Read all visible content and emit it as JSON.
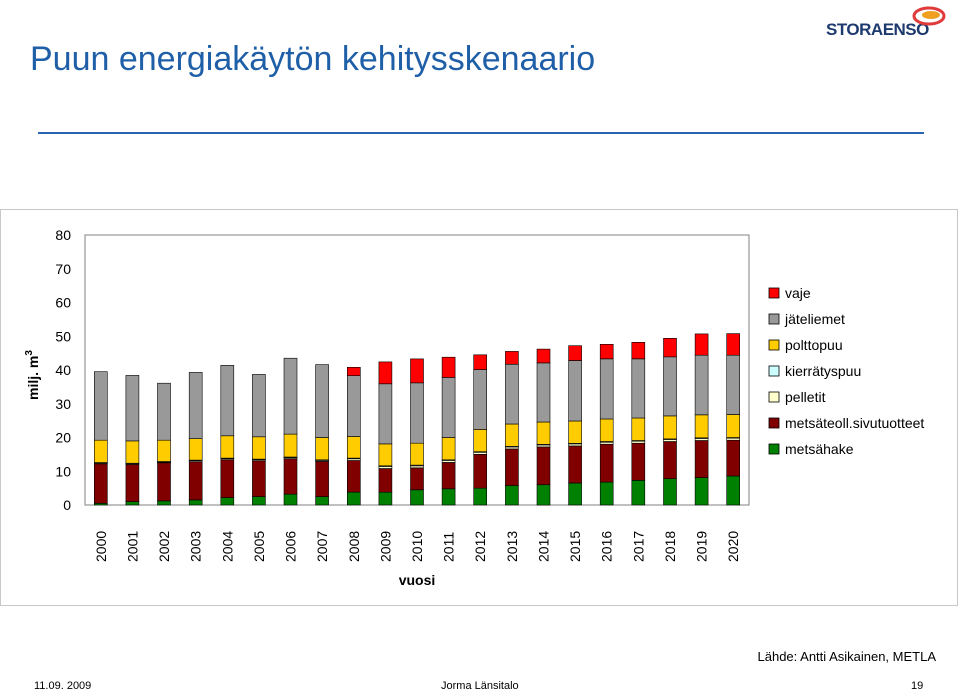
{
  "slide": {
    "title": "Puun energiakäytön kehitysskenaario",
    "source": "Lähde: Antti Asikainen, METLA",
    "footer_date": "11.09. 2009",
    "footer_author": "Jorma Länsitalo",
    "footer_page": "19",
    "logo": {
      "name": "storaenso-logo",
      "text": "STORAENSO"
    }
  },
  "chart_data": {
    "type": "bar",
    "stacked": true,
    "title": "",
    "xlabel": "vuosi",
    "ylabel": "milj. m",
    "ylabel_superscript": "3",
    "ylim": [
      0,
      80
    ],
    "yticks": [
      0,
      10,
      20,
      30,
      40,
      50,
      60,
      70,
      80
    ],
    "grid": false,
    "legend_position": "right",
    "categories": [
      "2000",
      "2001",
      "2002",
      "2003",
      "2004",
      "2005",
      "2006",
      "2007",
      "2008",
      "2009",
      "2010",
      "2011",
      "2012",
      "2013",
      "2014",
      "2015",
      "2016",
      "2017",
      "2018",
      "2019",
      "2020"
    ],
    "series": [
      {
        "name": "metsähake",
        "color": "#008000",
        "values": [
          0.5,
          1,
          1.2,
          1.5,
          2.2,
          2.5,
          3.2,
          2.5,
          3.8,
          3.8,
          4.5,
          4.8,
          5,
          5.8,
          6,
          6.5,
          6.8,
          7.3,
          7.8,
          8.1,
          8.6
        ]
      },
      {
        "name": "metsäteoll.sivutuotteet",
        "color": "#800000",
        "values": [
          11.7,
          11,
          11.3,
          11.3,
          11.2,
          10.6,
          10.5,
          10.4,
          9.4,
          7,
          6.5,
          7.8,
          10,
          10.8,
          11.2,
          11,
          11.2,
          11,
          11,
          11,
          10.6
        ]
      },
      {
        "name": "pelletit",
        "color": "#ffffcc",
        "values": [
          0.2,
          0.2,
          0.2,
          0.3,
          0.3,
          0.3,
          0.3,
          0.3,
          0.5,
          0.6,
          0.6,
          0.6,
          0.6,
          0.6,
          0.6,
          0.6,
          0.6,
          0.6,
          0.6,
          0.6,
          0.6
        ]
      },
      {
        "name": "kierrätyspuu",
        "color": "#ccffff",
        "values": [
          0.2,
          0.2,
          0.2,
          0.2,
          0.2,
          0.2,
          0.2,
          0.2,
          0.2,
          0.2,
          0.2,
          0.2,
          0.2,
          0.2,
          0.2,
          0.2,
          0.2,
          0.2,
          0.2,
          0.2,
          0.2
        ]
      },
      {
        "name": "polttopuu",
        "color": "#ffcc00",
        "values": [
          6.6,
          6.6,
          6.3,
          6.4,
          6.6,
          6.6,
          6.8,
          6.6,
          6.4,
          6.5,
          6.5,
          6.6,
          6.6,
          6.6,
          6.6,
          6.6,
          6.7,
          6.7,
          6.8,
          6.8,
          6.8
        ]
      },
      {
        "name": "jäteliemet",
        "color": "#999999",
        "values": [
          20.3,
          19.4,
          16.9,
          19.6,
          20.9,
          18.5,
          22.5,
          21.6,
          18,
          17.8,
          17.9,
          17.8,
          17.7,
          17.7,
          17.5,
          17.9,
          17.8,
          17.5,
          17.5,
          17.7,
          17.6
        ]
      },
      {
        "name": "vaje",
        "color": "#ff0000",
        "values": [
          0,
          0,
          0,
          0,
          0,
          0,
          0,
          0,
          2.5,
          6.5,
          7.1,
          6,
          4.4,
          3.8,
          4.1,
          4.4,
          4.3,
          4.9,
          5.5,
          6.3,
          6.4
        ]
      }
    ]
  }
}
